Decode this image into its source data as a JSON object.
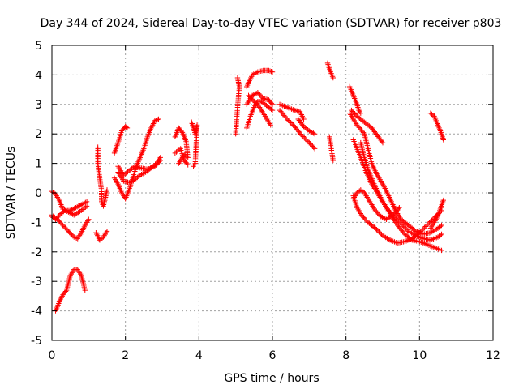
{
  "chart_data": {
    "type": "scatter",
    "title": "Day 344 of 2024, Sidereal Day-to-day VTEC variation (SDTVAR) for receiver p803",
    "xlabel": "GPS time / hours",
    "ylabel": "SDTVAR / TECUs",
    "xlim": [
      0,
      12
    ],
    "ylim": [
      -5,
      5
    ],
    "xticks": [
      0,
      2,
      4,
      6,
      8,
      10,
      12
    ],
    "yticks": [
      -5,
      -4,
      -3,
      -2,
      -1,
      0,
      1,
      2,
      3,
      4,
      5
    ],
    "grid": true,
    "marker": "plus",
    "color": "#ff0000",
    "tracks": [
      [
        [
          0.0,
          -0.8
        ],
        [
          0.1,
          -0.9
        ],
        [
          0.25,
          -0.7
        ],
        [
          0.35,
          -0.6
        ],
        [
          0.5,
          -0.6
        ],
        [
          0.65,
          -0.5
        ],
        [
          0.8,
          -0.4
        ],
        [
          0.95,
          -0.3
        ]
      ],
      [
        [
          0.0,
          0.05
        ],
        [
          0.1,
          -0.05
        ],
        [
          0.2,
          -0.25
        ],
        [
          0.3,
          -0.55
        ],
        [
          0.45,
          -0.65
        ],
        [
          0.6,
          -0.75
        ],
        [
          0.8,
          -0.6
        ],
        [
          0.95,
          -0.45
        ]
      ],
      [
        [
          0.0,
          -0.75
        ],
        [
          0.15,
          -0.9
        ],
        [
          0.3,
          -1.1
        ],
        [
          0.45,
          -1.3
        ],
        [
          0.6,
          -1.5
        ],
        [
          0.7,
          -1.55
        ],
        [
          0.8,
          -1.35
        ],
        [
          0.9,
          -1.1
        ],
        [
          1.0,
          -0.9
        ]
      ],
      [
        [
          0.1,
          -4.0
        ],
        [
          0.2,
          -3.7
        ],
        [
          0.3,
          -3.45
        ],
        [
          0.4,
          -3.3
        ],
        [
          0.5,
          -2.8
        ],
        [
          0.6,
          -2.6
        ],
        [
          0.7,
          -2.6
        ],
        [
          0.8,
          -2.8
        ],
        [
          0.9,
          -3.3
        ]
      ],
      [
        [
          1.25,
          1.55
        ],
        [
          1.25,
          1.0
        ],
        [
          1.3,
          0.5
        ],
        [
          1.35,
          0.1
        ],
        [
          1.35,
          -0.3
        ],
        [
          1.4,
          -0.45
        ],
        [
          1.45,
          -0.2
        ],
        [
          1.5,
          0.1
        ]
      ],
      [
        [
          1.2,
          -1.35
        ],
        [
          1.3,
          -1.6
        ],
        [
          1.4,
          -1.5
        ],
        [
          1.5,
          -1.3
        ]
      ],
      [
        [
          1.7,
          1.35
        ],
        [
          1.8,
          1.7
        ],
        [
          1.9,
          2.1
        ],
        [
          2.0,
          2.25
        ],
        [
          2.05,
          2.2
        ]
      ],
      [
        [
          1.7,
          0.5
        ],
        [
          1.8,
          0.3
        ],
        [
          1.9,
          0.0
        ],
        [
          2.0,
          -0.2
        ],
        [
          2.1,
          0.1
        ],
        [
          2.2,
          0.5
        ],
        [
          2.3,
          0.9
        ],
        [
          2.4,
          1.2
        ],
        [
          2.5,
          1.5
        ],
        [
          2.6,
          1.9
        ],
        [
          2.7,
          2.2
        ],
        [
          2.8,
          2.45
        ],
        [
          2.9,
          2.5
        ]
      ],
      [
        [
          1.8,
          0.7
        ],
        [
          1.95,
          0.4
        ],
        [
          2.1,
          0.35
        ],
        [
          2.25,
          0.45
        ],
        [
          2.4,
          0.6
        ],
        [
          2.55,
          0.7
        ],
        [
          2.7,
          0.85
        ],
        [
          2.85,
          1.0
        ],
        [
          2.95,
          1.2
        ]
      ],
      [
        [
          1.8,
          0.9
        ],
        [
          1.95,
          0.6
        ],
        [
          2.1,
          0.75
        ],
        [
          2.25,
          0.9
        ],
        [
          2.4,
          0.85
        ],
        [
          2.6,
          0.8
        ],
        [
          2.8,
          0.9
        ],
        [
          2.95,
          1.1
        ]
      ],
      [
        [
          3.35,
          1.9
        ],
        [
          3.45,
          2.2
        ],
        [
          3.55,
          2.05
        ],
        [
          3.65,
          1.75
        ],
        [
          3.7,
          1.2
        ],
        [
          3.6,
          1.3
        ],
        [
          3.45,
          1.0
        ]
      ],
      [
        [
          3.35,
          1.35
        ],
        [
          3.5,
          1.5
        ],
        [
          3.6,
          1.1
        ],
        [
          3.7,
          0.95
        ]
      ],
      [
        [
          3.8,
          2.4
        ],
        [
          3.85,
          2.2
        ],
        [
          3.9,
          2.0
        ],
        [
          3.95,
          2.3
        ],
        [
          3.9,
          1.0
        ],
        [
          3.85,
          0.9
        ]
      ],
      [
        [
          5.0,
          2.0
        ],
        [
          5.05,
          2.9
        ],
        [
          5.1,
          3.6
        ],
        [
          5.05,
          3.9
        ]
      ],
      [
        [
          5.3,
          3.6
        ],
        [
          5.45,
          4.0
        ],
        [
          5.6,
          4.1
        ],
        [
          5.75,
          4.15
        ],
        [
          5.9,
          4.15
        ],
        [
          6.0,
          4.1
        ]
      ],
      [
        [
          5.3,
          2.2
        ],
        [
          5.4,
          2.6
        ],
        [
          5.5,
          2.9
        ],
        [
          5.6,
          3.1
        ],
        [
          5.7,
          3.1
        ],
        [
          5.8,
          3.0
        ],
        [
          5.9,
          2.9
        ],
        [
          6.0,
          2.8
        ]
      ],
      [
        [
          5.35,
          3.3
        ],
        [
          5.5,
          3.1
        ],
        [
          5.65,
          2.9
        ],
        [
          5.8,
          2.6
        ],
        [
          5.95,
          2.3
        ]
      ],
      [
        [
          5.3,
          3.0
        ],
        [
          5.45,
          3.3
        ],
        [
          5.6,
          3.4
        ],
        [
          5.75,
          3.2
        ],
        [
          5.9,
          3.15
        ],
        [
          6.0,
          3.0
        ]
      ],
      [
        [
          6.2,
          3.0
        ],
        [
          6.4,
          2.9
        ],
        [
          6.6,
          2.8
        ],
        [
          6.75,
          2.75
        ],
        [
          6.85,
          2.5
        ]
      ],
      [
        [
          6.2,
          2.8
        ],
        [
          6.4,
          2.5
        ],
        [
          6.6,
          2.25
        ],
        [
          6.8,
          1.95
        ],
        [
          7.0,
          1.7
        ],
        [
          7.15,
          1.5
        ]
      ],
      [
        [
          6.7,
          2.5
        ],
        [
          6.85,
          2.25
        ],
        [
          7.0,
          2.1
        ],
        [
          7.15,
          2.0
        ]
      ],
      [
        [
          7.5,
          4.4
        ],
        [
          7.55,
          4.2
        ],
        [
          7.6,
          4.05
        ],
        [
          7.65,
          3.9
        ]
      ],
      [
        [
          7.55,
          1.9
        ],
        [
          7.6,
          1.5
        ],
        [
          7.65,
          1.1
        ]
      ],
      [
        [
          8.1,
          3.6
        ],
        [
          8.2,
          3.3
        ],
        [
          8.3,
          3.0
        ],
        [
          8.35,
          2.8
        ],
        [
          8.4,
          2.7
        ]
      ],
      [
        [
          8.15,
          2.8
        ],
        [
          8.3,
          2.6
        ],
        [
          8.5,
          2.4
        ],
        [
          8.7,
          2.2
        ],
        [
          8.85,
          1.95
        ],
        [
          9.0,
          1.7
        ]
      ],
      [
        [
          8.1,
          2.7
        ],
        [
          8.3,
          2.3
        ],
        [
          8.5,
          2.0
        ],
        [
          8.6,
          1.5
        ],
        [
          8.7,
          1.0
        ],
        [
          8.85,
          0.6
        ],
        [
          9.0,
          0.3
        ],
        [
          9.2,
          -0.2
        ],
        [
          9.35,
          -0.6
        ],
        [
          9.5,
          -0.9
        ],
        [
          9.7,
          -1.1
        ],
        [
          9.9,
          -1.3
        ],
        [
          10.1,
          -1.4
        ],
        [
          10.3,
          -1.35
        ],
        [
          10.5,
          -1.2
        ],
        [
          10.6,
          -1.1
        ]
      ],
      [
        [
          8.2,
          1.8
        ],
        [
          8.4,
          1.2
        ],
        [
          8.55,
          0.7
        ],
        [
          8.7,
          0.3
        ],
        [
          8.9,
          -0.1
        ],
        [
          9.1,
          -0.5
        ],
        [
          9.3,
          -0.8
        ],
        [
          9.5,
          -1.05
        ],
        [
          9.7,
          -1.3
        ],
        [
          9.9,
          -1.45
        ],
        [
          10.1,
          -1.55
        ],
        [
          10.3,
          -1.6
        ],
        [
          10.5,
          -1.5
        ],
        [
          10.6,
          -1.4
        ]
      ],
      [
        [
          8.4,
          1.7
        ],
        [
          8.5,
          1.2
        ],
        [
          8.6,
          0.8
        ],
        [
          8.8,
          0.2
        ],
        [
          9.0,
          -0.3
        ],
        [
          9.2,
          -0.7
        ],
        [
          9.4,
          -1.1
        ],
        [
          9.6,
          -1.4
        ],
        [
          9.8,
          -1.6
        ],
        [
          10.0,
          -1.65
        ],
        [
          10.3,
          -1.8
        ],
        [
          10.6,
          -1.95
        ]
      ],
      [
        [
          8.2,
          -0.1
        ],
        [
          8.3,
          -0.5
        ],
        [
          8.45,
          -0.8
        ],
        [
          8.6,
          -1.0
        ],
        [
          8.8,
          -1.2
        ],
        [
          9.0,
          -1.45
        ],
        [
          9.2,
          -1.6
        ],
        [
          9.4,
          -1.7
        ],
        [
          9.6,
          -1.65
        ],
        [
          9.8,
          -1.55
        ],
        [
          10.0,
          -1.35
        ],
        [
          10.2,
          -1.1
        ],
        [
          10.4,
          -0.85
        ],
        [
          10.6,
          -0.6
        ]
      ],
      [
        [
          8.2,
          -0.2
        ],
        [
          8.3,
          0.0
        ],
        [
          8.4,
          0.1
        ],
        [
          8.5,
          0.0
        ],
        [
          8.6,
          -0.2
        ],
        [
          8.7,
          -0.4
        ],
        [
          8.8,
          -0.6
        ],
        [
          8.95,
          -0.8
        ],
        [
          9.1,
          -0.9
        ],
        [
          9.3,
          -0.75
        ],
        [
          9.45,
          -0.5
        ]
      ],
      [
        [
          10.3,
          2.7
        ],
        [
          10.4,
          2.6
        ],
        [
          10.5,
          2.3
        ],
        [
          10.6,
          2.0
        ],
        [
          10.65,
          1.8
        ]
      ],
      [
        [
          10.3,
          -1.2
        ],
        [
          10.45,
          -0.9
        ],
        [
          10.55,
          -0.6
        ],
        [
          10.65,
          -0.25
        ]
      ]
    ]
  }
}
